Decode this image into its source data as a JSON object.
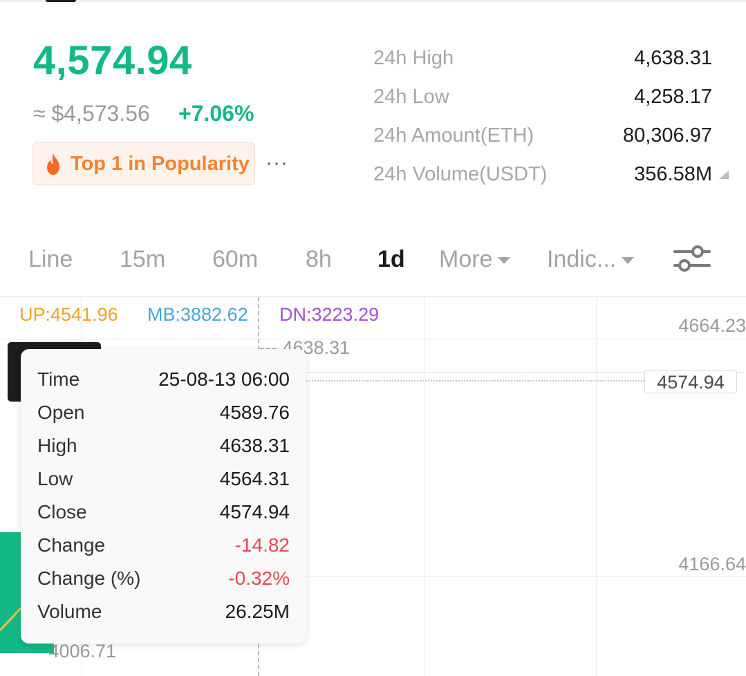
{
  "ticker": {
    "price": "4,574.94",
    "approx_usd": "≈ $4,573.56",
    "change_pct": "+7.06%",
    "badge_label": "Top 1 in Popularity",
    "more_label": "···"
  },
  "stats": [
    {
      "label": "24h High",
      "value": "4,638.31"
    },
    {
      "label": "24h Low",
      "value": "4,258.17"
    },
    {
      "label": "24h Amount(ETH)",
      "value": "80,306.97"
    },
    {
      "label": "24h Volume(USDT)",
      "value": "356.58M"
    }
  ],
  "tabs": [
    {
      "label": "Line"
    },
    {
      "label": "15m"
    },
    {
      "label": "60m"
    },
    {
      "label": "8h"
    },
    {
      "label": "1d",
      "active": true
    },
    {
      "label": "More"
    },
    {
      "label": "Indic..."
    }
  ],
  "indicators": {
    "up": "UP:4541.96",
    "mb": "MB:3882.62",
    "dn": "DN:3223.29"
  },
  "axis": {
    "top": "4664.23",
    "current": "4574.94",
    "mid": "4166.64"
  },
  "markers": {
    "high": "--- 4638.31",
    "low": "--- 4006.71"
  },
  "tooltip": {
    "rows": [
      {
        "key": "Time",
        "value": "25-08-13 06:00"
      },
      {
        "key": "Open",
        "value": "4589.76"
      },
      {
        "key": "High",
        "value": "4638.31"
      },
      {
        "key": "Low",
        "value": "4564.31"
      },
      {
        "key": "Close",
        "value": "4574.94"
      },
      {
        "key": "Change",
        "value": "-14.82"
      },
      {
        "key": "Change (%)",
        "value": "-0.32%"
      },
      {
        "key": "Volume",
        "value": "26.25M"
      }
    ]
  },
  "colors": {
    "up": "#12b886",
    "down": "#e5484d",
    "accent_orange": "#f2832f",
    "ind_up": "#f0a324",
    "ind_mb": "#49a6d6",
    "ind_dn": "#a44fd8"
  },
  "icons": {
    "fire": "fire-icon",
    "settings": "sliders-icon"
  }
}
